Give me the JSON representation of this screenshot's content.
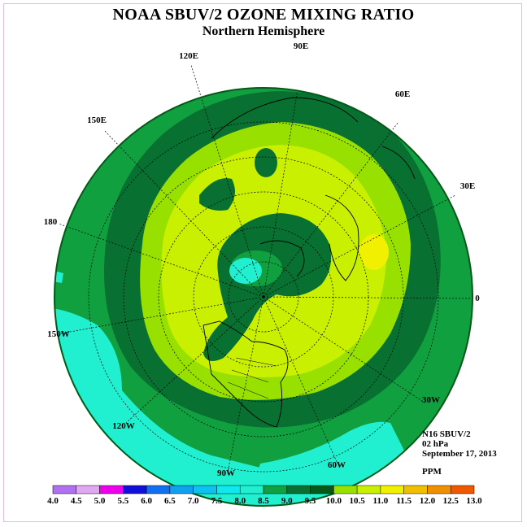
{
  "title": "NOAA SBUV/2 OZONE MIXING RATIO",
  "subtitle": "Northern Hemisphere",
  "lon_labels": [
    "90E",
    "60E",
    "30E",
    "0",
    "30W",
    "60W",
    "90W",
    "120W",
    "150W",
    "180",
    "150E",
    "120E"
  ],
  "info": {
    "satellite": "N16 SBUV/2",
    "level": "02 hPa",
    "date": "September 17, 2013",
    "units": "PPM"
  },
  "colorbar": {
    "ticks": [
      "4.0",
      "4.5",
      "5.0",
      "5.5",
      "6.0",
      "6.5",
      "7.0",
      "7.5",
      "8.0",
      "8.5",
      "9.0",
      "9.5",
      "10.0",
      "10.5",
      "11.0",
      "11.5",
      "12.0",
      "12.5",
      "13.0"
    ],
    "colors": [
      "#b070f0",
      "#e0a8f0",
      "#ee00ee",
      "#1010d8",
      "#1070f0",
      "#10a0f0",
      "#10c0f0",
      "#10e8f0",
      "#20f0d0",
      "#10a040",
      "#087030",
      "#045818",
      "#98e000",
      "#c8f000",
      "#f0f000",
      "#f0c000",
      "#f09000",
      "#f05800",
      "#f00000",
      "#a06030"
    ]
  },
  "field_colors": {
    "band_7_5_8_0": "#20f0d0",
    "band_8_0_8_5": "#10a040",
    "band_8_5_9_0": "#087030",
    "band_9_0_9_5": "#045818",
    "band_9_5_10_0": "#98e000",
    "band_10_0_10_5": "#c8f000",
    "band_10_5_11_0": "#f0f000"
  }
}
